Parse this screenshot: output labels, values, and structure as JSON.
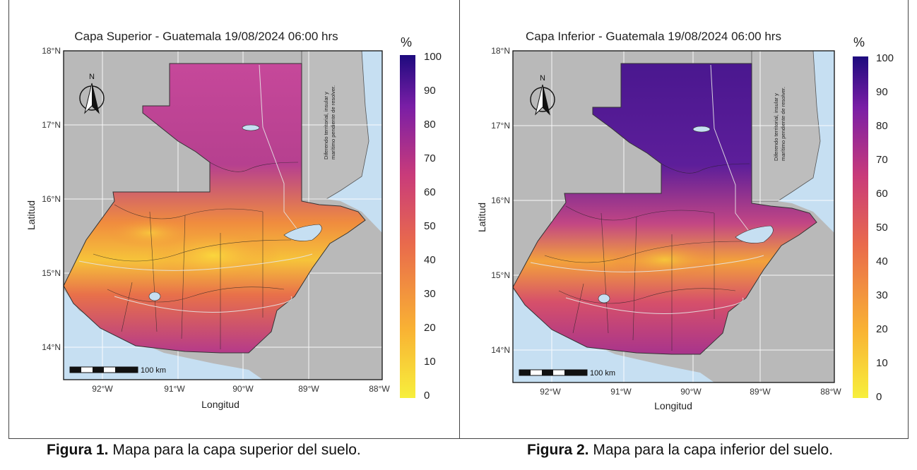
{
  "maps": [
    {
      "title": "Capa Superior - Guatemala 19/08/2024 06:00 hrs",
      "legend_unit": "%",
      "legend_ticks": [
        "100",
        "90",
        "80",
        "70",
        "60",
        "50",
        "40",
        "30",
        "20",
        "10",
        "0"
      ],
      "lat_labels": [
        "18°N",
        "17°N",
        "16°N",
        "15°N",
        "14°N"
      ],
      "lon_labels": [
        "92°W",
        "91°W",
        "90°W",
        "89°W",
        "88°W"
      ],
      "xlabel": "Longitud",
      "ylabel": "Latitud",
      "north_label": "N",
      "scale_label": "100 km",
      "belize_note_line1": "Diferendo territorial, insular y",
      "belize_note_line2": "marítimo pendiente de resolver."
    },
    {
      "title": "Capa Inferior - Guatemala 19/08/2024 06:00 hrs",
      "legend_unit": "%",
      "legend_ticks": [
        "100",
        "90",
        "80",
        "70",
        "60",
        "50",
        "40",
        "30",
        "20",
        "10",
        "0"
      ],
      "lat_labels": [
        "18°N",
        "17°N",
        "16°N",
        "15°N",
        "14°N"
      ],
      "lon_labels": [
        "92°W",
        "91°W",
        "90°W",
        "89°W",
        "88°W"
      ],
      "xlabel": "Longitud",
      "ylabel": "Latitud",
      "north_label": "N",
      "scale_label": "100 km",
      "belize_note_line1": "Diferendo territorial, insular y",
      "belize_note_line2": "marítimo pendiente de resolver."
    }
  ],
  "captions": [
    {
      "bold": "Figura 1.",
      "text": " Mapa para la capa superior del suelo."
    },
    {
      "bold": "Figura 2.",
      "text": " Mapa para la capa inferior del suelo."
    }
  ],
  "colors": {
    "ocean": "#c6dff2",
    "land_other": "#b9b9b9",
    "scale_low": "#f7e83a",
    "scale_mid": "#e85a5a",
    "scale_high": "#1f0c82"
  }
}
